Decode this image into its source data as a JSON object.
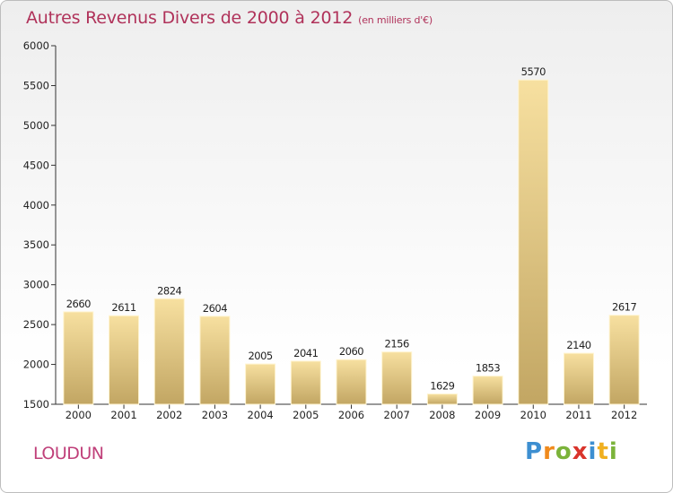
{
  "header": {
    "title": "Autres Revenus Divers de 2000 à 2012",
    "subtitle": "(en milliers d'€)"
  },
  "footer": {
    "place": "LOUDUN",
    "brand": "Proxiti"
  },
  "colors": {
    "title": "#b0325a",
    "bar_light": "#f5dc98",
    "bar_dark": "#c4a866",
    "axis": "#333333"
  },
  "chart_data": {
    "type": "bar",
    "title": "Autres Revenus Divers de 2000 à 2012",
    "xlabel": "",
    "ylabel": "",
    "categories": [
      "2000",
      "2001",
      "2002",
      "2003",
      "2004",
      "2005",
      "2006",
      "2007",
      "2008",
      "2009",
      "2010",
      "2011",
      "2012"
    ],
    "values": [
      2660,
      2611,
      2824,
      2604,
      2005,
      2041,
      2060,
      2156,
      1629,
      1853,
      5570,
      2140,
      2617
    ],
    "ylim": [
      1500,
      6000
    ],
    "yticks": [
      1500,
      2000,
      2500,
      3000,
      3500,
      4000,
      4500,
      5000,
      5500,
      6000
    ],
    "grid": false,
    "data_labels": true
  }
}
